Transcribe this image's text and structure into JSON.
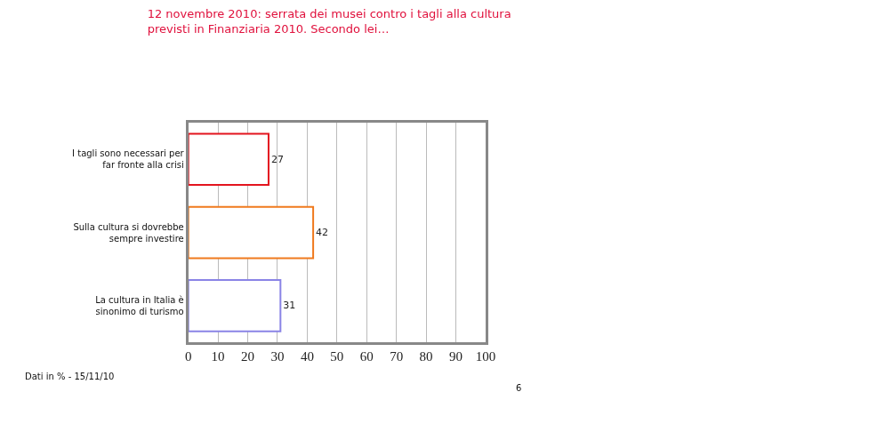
{
  "chart_data": {
    "type": "bar",
    "orientation": "horizontal",
    "title": "12 novembre 2010: serrata dei musei contro i tagli alla cultura previsti in Finanziaria 2010. Secondo lei…",
    "categories": [
      "I tagli sono necessari per far fronte alla crisi",
      "Sulla cultura si dovrebbe sempre investire",
      "La cultura in Italia è sinonimo di turismo"
    ],
    "values": [
      27,
      42,
      31
    ],
    "colors": [
      "#e3141e",
      "#f07a1e",
      "#8a84e6"
    ],
    "data_labels": true,
    "xlim": [
      0,
      100
    ],
    "xticks": [
      0,
      10,
      20,
      30,
      40,
      50,
      60,
      70,
      80,
      90,
      100
    ],
    "grid": "x",
    "legend": false,
    "annotations": [
      "Dati in % - 15/11/10",
      "6"
    ]
  }
}
